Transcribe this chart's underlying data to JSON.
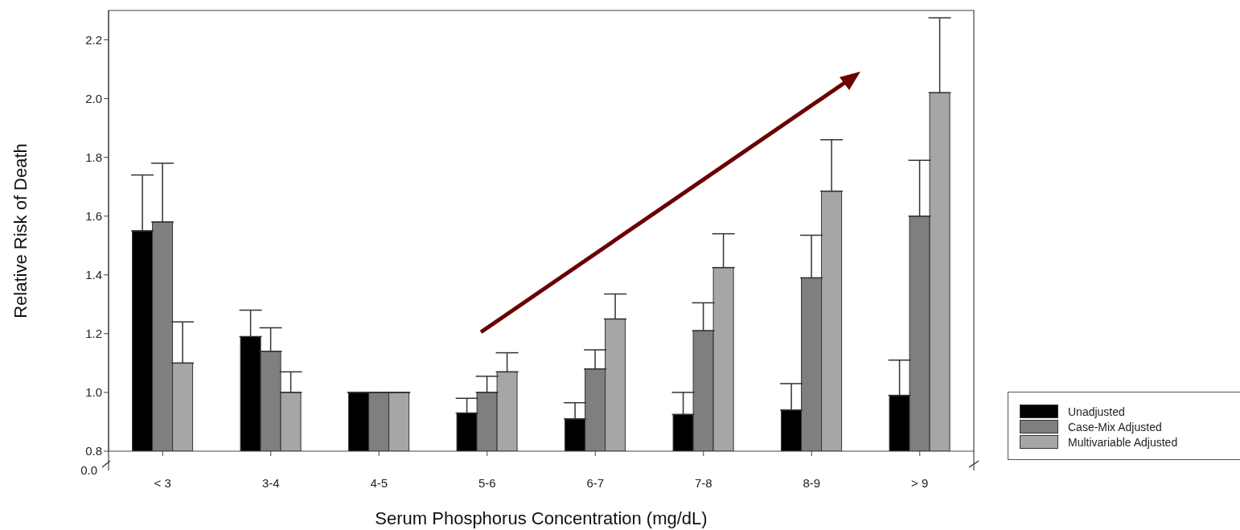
{
  "chart_data": {
    "type": "bar",
    "xlabel": "Serum Phosphorus Concentration (mg/dL)",
    "ylabel": "Relative Risk of Death",
    "categories": [
      "< 3",
      "3-4",
      "4-5",
      "5-6",
      "6-7",
      "7-8",
      "8-9",
      "> 9"
    ],
    "series": [
      {
        "name": "Unadjusted",
        "color": "#000000",
        "values": [
          1.55,
          1.19,
          1.0,
          0.93,
          0.91,
          0.925,
          0.94,
          0.99
        ],
        "errors": [
          [
            1.55,
            1.74
          ],
          [
            1.19,
            1.28
          ],
          null,
          [
            0.93,
            0.98
          ],
          [
            0.91,
            0.965
          ],
          [
            0.925,
            1.0
          ],
          [
            0.94,
            1.03
          ],
          [
            0.99,
            1.11
          ]
        ]
      },
      {
        "name": "Case-Mix Adjusted",
        "color": "#7f7f7f",
        "values": [
          1.58,
          1.14,
          1.0,
          1.0,
          1.08,
          1.21,
          1.39,
          1.6
        ],
        "errors": [
          [
            1.58,
            1.78
          ],
          [
            1.14,
            1.22
          ],
          null,
          [
            1.0,
            1.055
          ],
          [
            1.08,
            1.145
          ],
          [
            1.21,
            1.305
          ],
          [
            1.39,
            1.535
          ],
          [
            1.6,
            1.79
          ]
        ]
      },
      {
        "name": "Multivariable Adjusted",
        "color": "#a6a6a6",
        "values": [
          1.1,
          1.0,
          1.0,
          1.07,
          1.25,
          1.425,
          1.685,
          2.02
        ],
        "errors": [
          [
            1.1,
            1.24
          ],
          [
            1.0,
            1.07
          ],
          null,
          [
            1.07,
            1.135
          ],
          [
            1.25,
            1.335
          ],
          [
            1.425,
            1.54
          ],
          [
            1.685,
            1.86
          ],
          [
            2.02,
            2.275
          ]
        ]
      }
    ],
    "ylim": [
      0.8,
      2.3
    ],
    "yticks": [
      0.8,
      {
        "value": 1.0,
        "label": "1.0"
      },
      1.2,
      1.4,
      1.6,
      1.8,
      {
        "value": 2.0,
        "label": "2.0"
      },
      2.2
    ],
    "annotations": [
      "0.0"
    ],
    "grid": false,
    "legend": "bottom right"
  }
}
